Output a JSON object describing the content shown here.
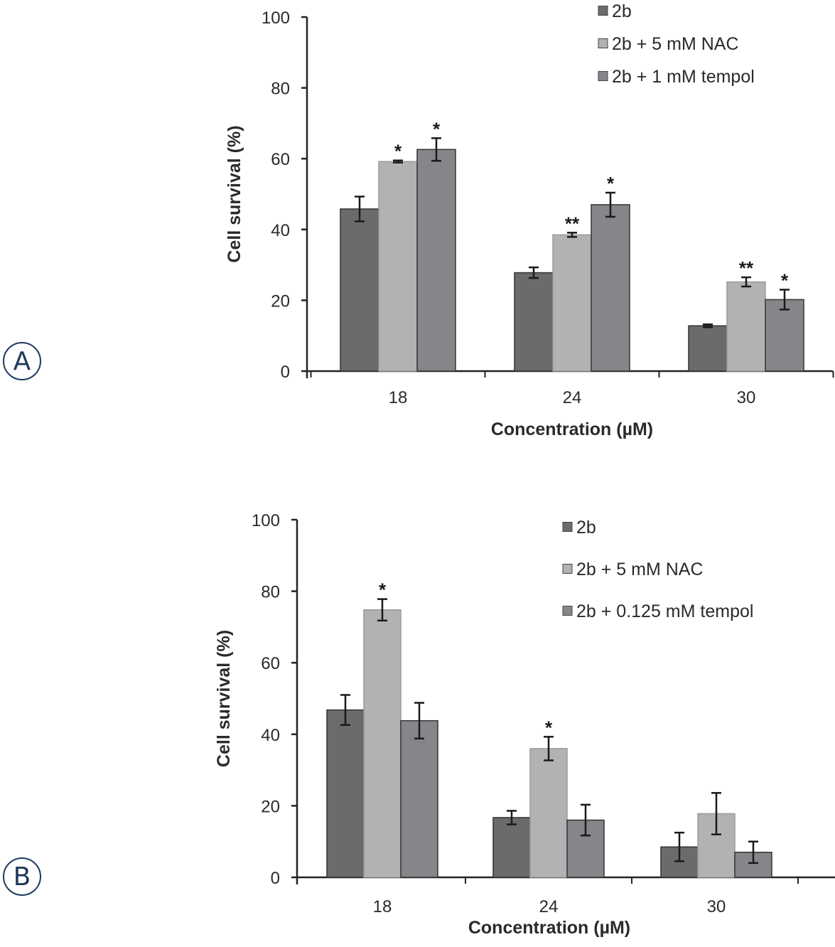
{
  "panels": [
    {
      "label": "A"
    },
    {
      "label": "B"
    }
  ],
  "chart_data": [
    {
      "type": "bar",
      "panel": "A",
      "title": "",
      "xlabel": "Concentration (µM)",
      "ylabel": "Cell survival (%)",
      "ylim": [
        0,
        100
      ],
      "yticks": [
        0,
        20,
        40,
        60,
        80,
        100
      ],
      "categories": [
        "18",
        "24",
        "30"
      ],
      "legend_position": "top-right",
      "grid": false,
      "series": [
        {
          "name": "2b",
          "color": "#6b6b6e",
          "values": [
            45.8,
            27.8,
            12.8
          ],
          "errors": [
            3.5,
            1.5,
            0.4
          ],
          "significance": [
            "",
            "",
            ""
          ]
        },
        {
          "name": "2b + 5 mM NAC",
          "color": "#b2b2b4",
          "values": [
            59.2,
            38.5,
            25.2
          ],
          "errors": [
            0.3,
            0.6,
            1.3
          ],
          "significance": [
            "*",
            "**",
            "**"
          ]
        },
        {
          "name": "2b + 1 mM tempol",
          "color": "#86868a",
          "values": [
            62.6,
            47.0,
            20.2
          ],
          "errors": [
            3.2,
            3.4,
            2.8
          ],
          "significance": [
            "*",
            "*",
            "*"
          ]
        }
      ]
    },
    {
      "type": "bar",
      "panel": "B",
      "title": "",
      "xlabel": "Concentration (µM)",
      "ylabel": "Cell survival (%)",
      "ylim": [
        0,
        100
      ],
      "yticks": [
        0,
        20,
        40,
        60,
        80,
        100
      ],
      "categories": [
        "18",
        "24",
        "30"
      ],
      "legend_position": "top-right",
      "grid": false,
      "series": [
        {
          "name": "2b",
          "color": "#6b6b6e",
          "values": [
            46.8,
            16.7,
            8.5
          ],
          "errors": [
            4.2,
            1.9,
            4.0
          ],
          "significance": [
            "",
            "",
            ""
          ]
        },
        {
          "name": "2b + 5 mM NAC",
          "color": "#b2b2b4",
          "values": [
            74.8,
            36.0,
            17.8
          ],
          "errors": [
            3.0,
            3.3,
            5.8
          ],
          "significance": [
            "*",
            "*",
            ""
          ]
        },
        {
          "name": "2b + 0.125 mM tempol",
          "color": "#86868a",
          "values": [
            43.8,
            16.0,
            7.0
          ],
          "errors": [
            5.0,
            4.3,
            3.0
          ],
          "significance": [
            "",
            "",
            ""
          ]
        }
      ]
    }
  ]
}
